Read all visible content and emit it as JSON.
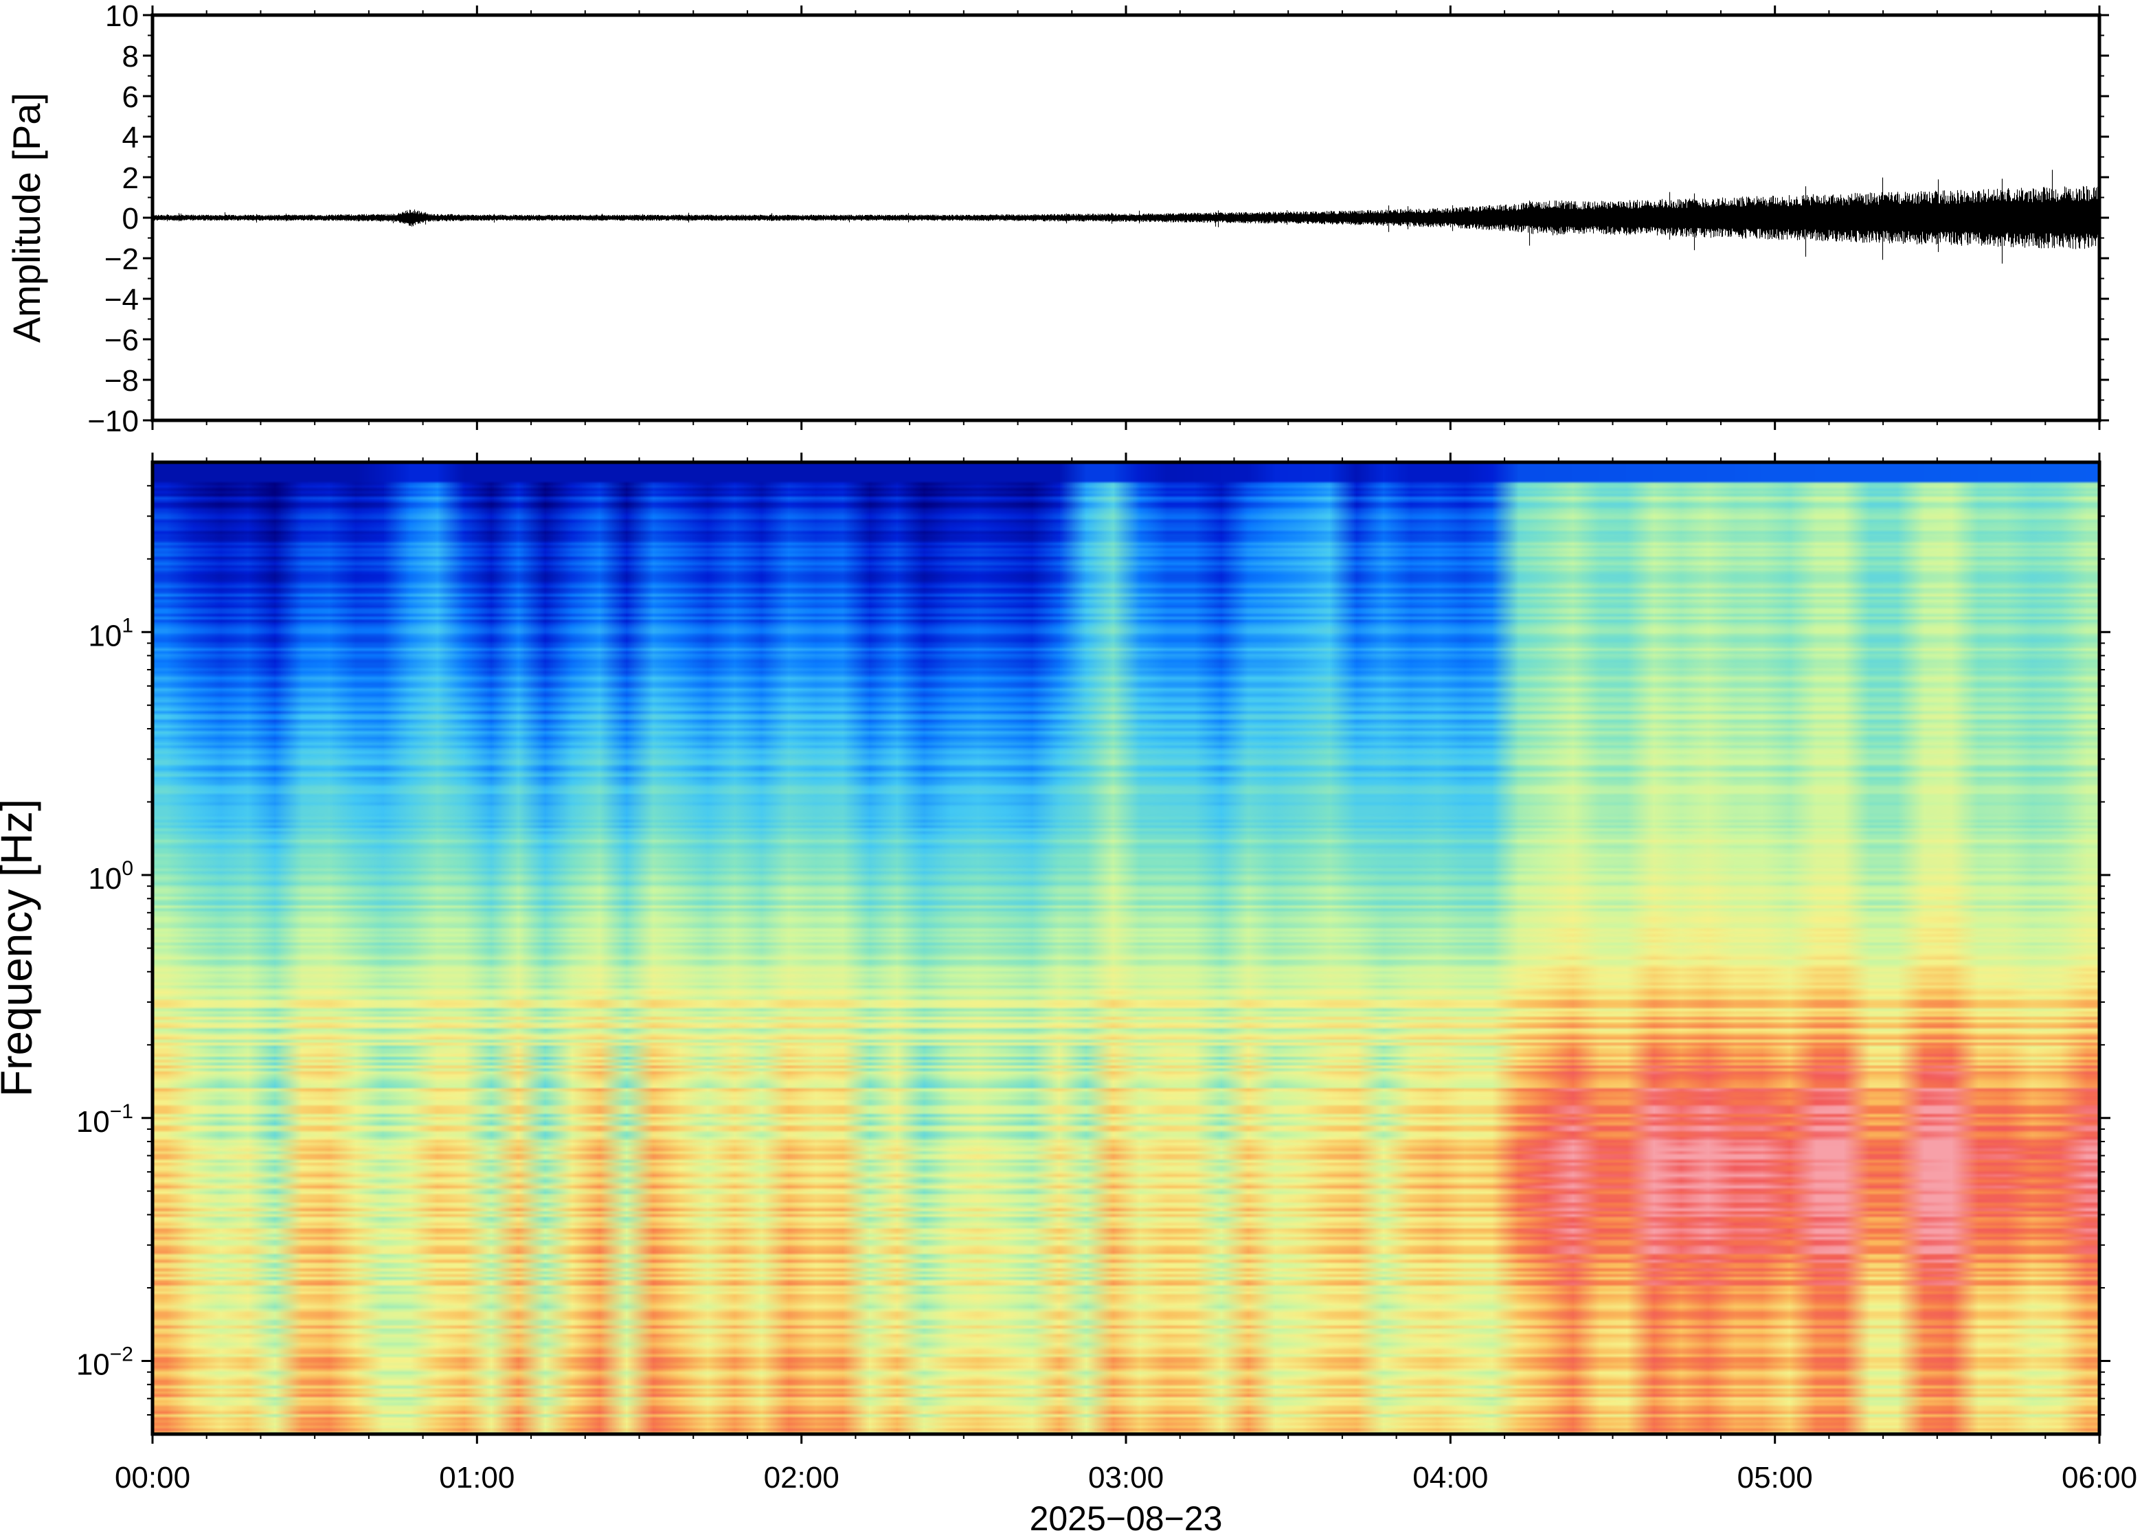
{
  "chart_data": [
    {
      "type": "line",
      "ylabel": "Amplitude [Pa]",
      "ylim": [
        -10,
        10
      ],
      "yticks": [
        "10",
        "8",
        "6",
        "4",
        "2",
        "0",
        "−2",
        "−4",
        "−6",
        "−8",
        "−10"
      ],
      "ytick_values": [
        10,
        8,
        6,
        4,
        2,
        0,
        -2,
        -4,
        -6,
        -8,
        -10
      ],
      "xlim_hours": [
        0,
        6
      ],
      "grid": false,
      "envelope": {
        "t_hours": [
          0.0,
          0.5,
          0.75,
          0.8,
          0.85,
          1.0,
          1.5,
          2.0,
          2.5,
          2.9,
          3.0,
          3.2,
          3.5,
          3.8,
          4.0,
          4.2,
          4.3,
          4.4,
          4.6,
          4.8,
          5.0,
          5.2,
          5.4,
          5.6,
          5.8,
          6.0
        ],
        "half_range_pa": [
          0.15,
          0.15,
          0.2,
          0.45,
          0.2,
          0.15,
          0.15,
          0.15,
          0.15,
          0.2,
          0.2,
          0.25,
          0.3,
          0.4,
          0.5,
          0.7,
          0.9,
          0.8,
          0.9,
          1.0,
          1.1,
          1.2,
          1.3,
          1.4,
          1.5,
          1.6
        ]
      }
    },
    {
      "type": "heatmap",
      "ylabel": "Frequency [Hz]",
      "xlabel": "2025−08−23",
      "yscale": "log",
      "ylim": [
        0.005,
        50
      ],
      "ytick_labels": [
        {
          "base": "10",
          "exp": "1"
        },
        {
          "base": "10",
          "exp": "0"
        },
        {
          "base": "10",
          "exp": "−1"
        },
        {
          "base": "10",
          "exp": "−2"
        }
      ],
      "ytick_values": [
        10,
        1,
        0.1,
        0.01
      ],
      "xticks": [
        "00:00",
        "01:00",
        "02:00",
        "03:00",
        "04:00",
        "05:00",
        "06:00"
      ],
      "xtick_hours": [
        0,
        1,
        2,
        3,
        4,
        5,
        6
      ],
      "colormap": [
        "#00007f",
        "#0020d8",
        "#0a7cff",
        "#42c8f5",
        "#7ee3c6",
        "#cdf7a0",
        "#f6f28a",
        "#fbc15e",
        "#f87e4a",
        "#f25a5a",
        "#f7a0a8"
      ],
      "high_freq_column_brightness": {
        "t_hours": [
          0.0,
          0.7,
          0.72,
          0.88,
          0.9,
          2.85,
          2.87,
          3.03,
          3.05,
          3.38,
          3.4,
          3.63,
          3.65,
          3.73,
          3.75,
          3.8,
          3.82,
          4.12,
          4.14,
          4.6,
          5.0,
          6.0
        ],
        "level": [
          0.1,
          0.1,
          0.55,
          0.55,
          0.15,
          0.15,
          0.75,
          0.75,
          0.2,
          0.3,
          0.55,
          0.6,
          0.2,
          0.2,
          0.55,
          0.55,
          0.35,
          0.35,
          0.9,
          0.95,
          1.0,
          1.05
        ]
      },
      "low_freq_column_brightness": {
        "t_hours": [
          0.0,
          0.7,
          0.72,
          0.88,
          0.9,
          2.85,
          2.87,
          3.03,
          3.05,
          3.38,
          3.4,
          3.8,
          3.82,
          4.1,
          4.14,
          4.6,
          5.0,
          6.0
        ],
        "level": [
          0.0,
          0.0,
          0.25,
          0.25,
          0.0,
          0.0,
          0.1,
          0.1,
          0.0,
          0.05,
          0.2,
          0.2,
          0.35,
          0.4,
          0.6,
          0.75,
          0.8,
          0.85
        ]
      }
    }
  ]
}
